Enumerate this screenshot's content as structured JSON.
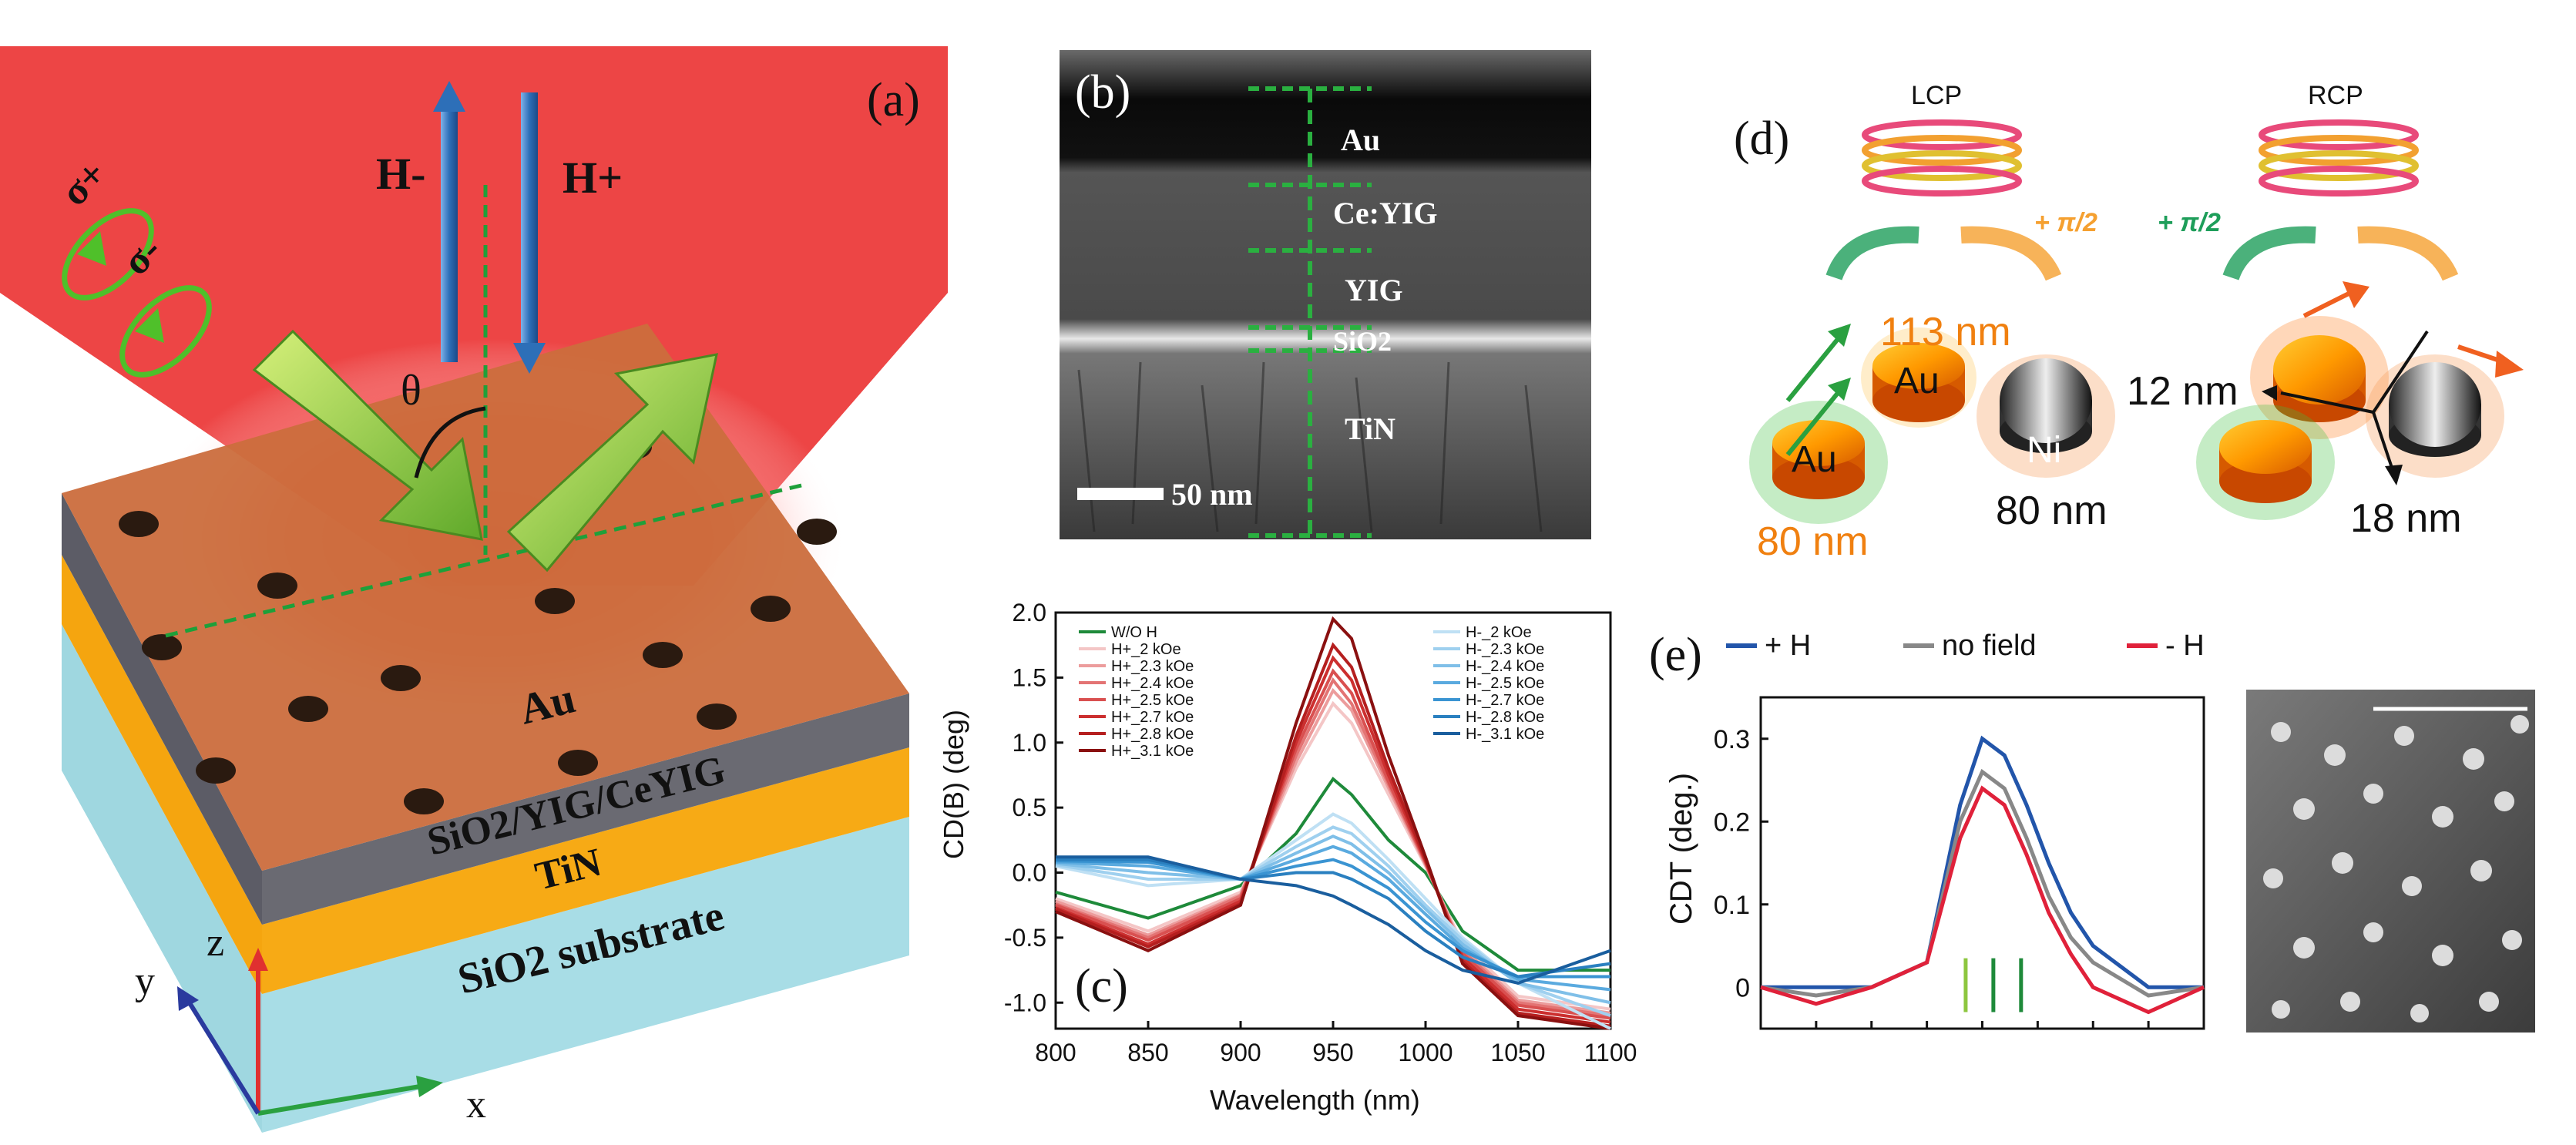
{
  "panel_a": {
    "label": "(a)",
    "sigma_plus": "σ+",
    "sigma_minus": "σ-",
    "h_minus": "H-",
    "h_plus": "H+",
    "theta": "θ",
    "layer_au": "Au",
    "layer_oxide": "SiO2/YIG/CeYIG",
    "layer_tin": "TiN",
    "layer_substrate": "SiO2 substrate",
    "axis_x": "x",
    "axis_y": "y",
    "axis_z": "z"
  },
  "panel_b": {
    "label": "(b)",
    "layers": [
      "Au",
      "Ce:YIG",
      "YIG",
      "SiO2",
      "TiN"
    ],
    "scale_bar": "50 nm"
  },
  "panel_c": {
    "label": "(c)",
    "chart_data": {
      "type": "line",
      "xlabel": "Wavelength (nm)",
      "ylabel": "CD(B) (deg)",
      "xlim": [
        800,
        1100
      ],
      "ylim": [
        -1.2,
        2.0
      ],
      "xticks": [
        800,
        850,
        900,
        950,
        1000,
        1050,
        1100
      ],
      "yticks": [
        -1.0,
        -0.5,
        0.0,
        0.5,
        1.0,
        1.5,
        2.0
      ],
      "x": [
        800,
        850,
        900,
        930,
        950,
        960,
        980,
        1000,
        1020,
        1050,
        1100
      ],
      "series": [
        {
          "name": "W/O H",
          "color": "#1e8a3a",
          "values": [
            -0.15,
            -0.35,
            -0.1,
            0.3,
            0.72,
            0.6,
            0.25,
            0.0,
            -0.45,
            -0.75,
            -0.75
          ]
        },
        {
          "name": "H+_2 kOe",
          "color": "#f4c6c6",
          "values": [
            -0.2,
            -0.45,
            -0.15,
            0.8,
            1.3,
            1.15,
            0.6,
            0.05,
            -0.55,
            -0.95,
            -1.05
          ]
        },
        {
          "name": "H+_2.3 kOe",
          "color": "#ec9c9c",
          "values": [
            -0.22,
            -0.48,
            -0.17,
            0.85,
            1.4,
            1.25,
            0.65,
            0.06,
            -0.58,
            -0.98,
            -1.08
          ]
        },
        {
          "name": "H+_2.4 kOe",
          "color": "#e37474",
          "values": [
            -0.24,
            -0.5,
            -0.18,
            0.9,
            1.48,
            1.3,
            0.68,
            0.07,
            -0.6,
            -1.0,
            -1.1
          ]
        },
        {
          "name": "H+_2.5 kOe",
          "color": "#d95050",
          "values": [
            -0.25,
            -0.52,
            -0.2,
            0.95,
            1.55,
            1.38,
            0.7,
            0.08,
            -0.62,
            -1.02,
            -1.12
          ]
        },
        {
          "name": "H+_2.7 kOe",
          "color": "#cc2f2f",
          "values": [
            -0.27,
            -0.55,
            -0.22,
            1.0,
            1.65,
            1.48,
            0.75,
            0.09,
            -0.65,
            -1.05,
            -1.15
          ]
        },
        {
          "name": "H+_2.8 kOe",
          "color": "#b51f1f",
          "values": [
            -0.28,
            -0.57,
            -0.24,
            1.05,
            1.75,
            1.58,
            0.8,
            0.1,
            -0.68,
            -1.08,
            -1.18
          ]
        },
        {
          "name": "H+_3.1 kOe",
          "color": "#8a1010",
          "values": [
            -0.3,
            -0.6,
            -0.25,
            1.15,
            1.95,
            1.8,
            0.9,
            0.12,
            -0.7,
            -1.1,
            -1.2
          ]
        },
        {
          "name": "H-_2 kOe",
          "color": "#bfe0f4",
          "values": [
            0.05,
            -0.1,
            -0.05,
            0.25,
            0.45,
            0.38,
            0.1,
            -0.2,
            -0.5,
            -0.85,
            -1.2
          ]
        },
        {
          "name": "H-_2.3 kOe",
          "color": "#9fd0ef",
          "values": [
            0.06,
            -0.05,
            -0.05,
            0.2,
            0.35,
            0.3,
            0.05,
            -0.25,
            -0.52,
            -0.85,
            -1.1
          ]
        },
        {
          "name": "H-_2.4 kOe",
          "color": "#7fbfe8",
          "values": [
            0.07,
            0.0,
            -0.05,
            0.15,
            0.28,
            0.22,
            0.0,
            -0.28,
            -0.55,
            -0.85,
            -1.0
          ]
        },
        {
          "name": "H-_2.5 kOe",
          "color": "#5aaadf",
          "values": [
            0.08,
            0.05,
            -0.05,
            0.1,
            0.2,
            0.15,
            -0.05,
            -0.32,
            -0.58,
            -0.82,
            -0.9
          ]
        },
        {
          "name": "H-_2.7 kOe",
          "color": "#3a94d2",
          "values": [
            0.09,
            0.08,
            -0.05,
            0.05,
            0.1,
            0.05,
            -0.12,
            -0.38,
            -0.6,
            -0.8,
            -0.8
          ]
        },
        {
          "name": "H-_2.8 kOe",
          "color": "#2a80c0",
          "values": [
            0.1,
            0.1,
            -0.05,
            0.0,
            0.0,
            -0.05,
            -0.2,
            -0.45,
            -0.65,
            -0.8,
            -0.7
          ]
        },
        {
          "name": "H-_3.1 kOe",
          "color": "#1a5e9e",
          "values": [
            0.12,
            0.12,
            -0.05,
            -0.1,
            -0.18,
            -0.25,
            -0.4,
            -0.6,
            -0.75,
            -0.85,
            -0.6
          ]
        }
      ]
    }
  },
  "panel_d": {
    "label": "(d)",
    "lcp": "LCP",
    "rcp": "RCP",
    "phase_1": "+ π/2",
    "phase_2": "+ π/2",
    "au_1": "Au",
    "au_2": "Au",
    "ni": "Ni",
    "dim_113": "113 nm",
    "dim_80_orange": "80 nm",
    "dim_80_black": "80 nm",
    "dim_12": "12 nm",
    "dim_18": "18 nm"
  },
  "panel_e": {
    "label": "(e)",
    "chart_data": {
      "type": "line",
      "ylabel": "CDT (deg.)",
      "yticks": [
        0,
        0.1,
        0.2,
        0.3
      ],
      "ylim": [
        -0.05,
        0.35
      ],
      "x": [
        0,
        1,
        2,
        3,
        3.6,
        4,
        4.4,
        4.8,
        5.2,
        5.6,
        6,
        7,
        8
      ],
      "legend": [
        "+ H",
        "no field",
        "- H"
      ],
      "series": [
        {
          "name": "+ H",
          "color": "#2255aa",
          "values": [
            0.0,
            0.0,
            0.0,
            0.03,
            0.22,
            0.3,
            0.28,
            0.22,
            0.15,
            0.09,
            0.05,
            0.0,
            0.0
          ]
        },
        {
          "name": "no field",
          "color": "#888888",
          "values": [
            0.0,
            -0.01,
            0.0,
            0.03,
            0.2,
            0.26,
            0.24,
            0.18,
            0.11,
            0.06,
            0.03,
            -0.01,
            0.0
          ]
        },
        {
          "name": "- H",
          "color": "#e0213a",
          "values": [
            0.0,
            -0.02,
            0.0,
            0.03,
            0.18,
            0.24,
            0.22,
            0.16,
            0.09,
            0.04,
            0.0,
            -0.03,
            0.0
          ]
        }
      ],
      "markers": [
        {
          "position": 3.7,
          "color": "#8dc63f"
        },
        {
          "position": 4.2,
          "color": "#1e8a3a"
        },
        {
          "position": 4.7,
          "color": "#1e8a3a"
        }
      ]
    }
  }
}
